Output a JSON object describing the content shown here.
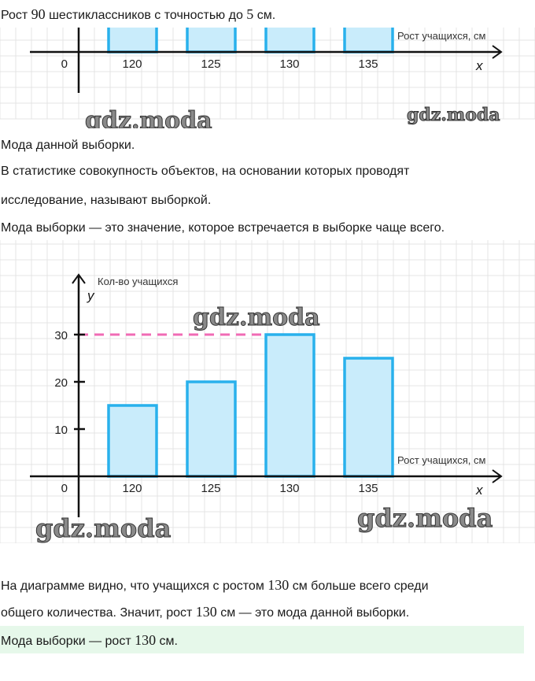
{
  "intro": {
    "pre": "Рост ",
    "n": "90",
    "mid": " шестиклассников с точностью до ",
    "n2": "5",
    "post": " см."
  },
  "heading": "Мода данной выборки.",
  "def1a": "В статистике совокупность объектов, на основании которых проводят",
  "def1b": "исследование, называют выборкой.",
  "def2": "Мода выборки — это значение, которое встречается в выборке чаще всего.",
  "conc1": {
    "pre": "На диаграмме видно, что учащихся с ростом ",
    "n": "130",
    "post": " см больше всего среди"
  },
  "conc2": {
    "pre": "общего количества. Значит, рост ",
    "n": "130",
    "post": " см — это мода данной выборки."
  },
  "answer": {
    "pre": "Мода выборки — рост ",
    "n": "130",
    "post": " см."
  },
  "watermark": "gdz.moda",
  "colors": {
    "bar_stroke": "#29b1ec",
    "bar_fill": "#c9ecfb",
    "mode_line": "#f06bb5",
    "answer_bg": "#e6f8ea",
    "grid": "#e4e4e4"
  },
  "chart_data": {
    "type": "bar",
    "ylabel": "Кол-во учащихся",
    "ylabel_var": "y",
    "xlabel": "Рост учащихся, см",
    "xlabel_var": "x",
    "categories": [
      "120",
      "125",
      "130",
      "135"
    ],
    "values": [
      15,
      20,
      30,
      25
    ],
    "yticks": [
      "10",
      "20",
      "30"
    ],
    "origin": "0",
    "mode_line_value": 30,
    "grid": true
  }
}
